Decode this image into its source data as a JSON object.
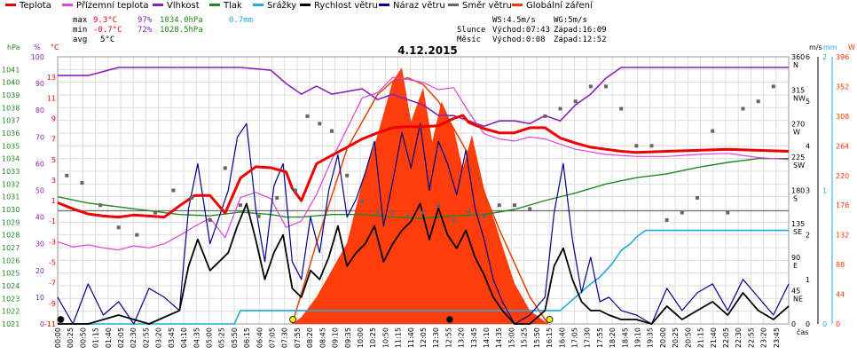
{
  "legend": [
    {
      "label": "Teplota",
      "color": "#ee0000"
    },
    {
      "label": "Přízemní teplota",
      "color": "#dd44dd"
    },
    {
      "label": "Vlhkost",
      "color": "#8822bb"
    },
    {
      "label": "Tlak",
      "color": "#228822"
    },
    {
      "label": "Srážky",
      "color": "#22aadd"
    },
    {
      "label": "Rychlost větru",
      "color": "#000000"
    },
    {
      "label": "Náraz větru",
      "color": "#000088"
    },
    {
      "label": "Směr větru",
      "color": "#666666"
    },
    {
      "label": "Globální záření",
      "color": "#ff3300"
    }
  ],
  "stats": {
    "max_label": "max",
    "max_temp": "9.3°C",
    "max_hum": "97%",
    "max_press": "1034.0hPa",
    "max_rain": "0.7mm",
    "min_label": "min",
    "min_temp": "-0.7°C",
    "min_hum": "72%",
    "min_press": "1028.5hPa",
    "avg_label": "avg",
    "avg_temp": "5°C"
  },
  "info": {
    "ws": "WS:4.5m/s",
    "wg": "WG:5m/s",
    "sun_label": "Slunce",
    "sunrise": "Východ:07:43",
    "sunset": "Západ:16:09",
    "moon_label": "Měsíc",
    "moonrise": "Východ:0:08",
    "moonset": "Západ:12:52"
  },
  "chart_data": {
    "type": "line",
    "title": "4.12.2015",
    "x_unit": "čas",
    "x_ticks": [
      "00:00",
      "00:25",
      "00:50",
      "01:15",
      "01:40",
      "02:05",
      "02:30",
      "02:55",
      "03:20",
      "03:45",
      "04:10",
      "04:35",
      "05:00",
      "05:25",
      "05:50",
      "06:15",
      "06:40",
      "07:05",
      "07:30",
      "07:55",
      "08:20",
      "08:45",
      "09:10",
      "09:35",
      "10:00",
      "10:25",
      "10:50",
      "11:15",
      "11:40",
      "12:05",
      "12:30",
      "12:55",
      "13:20",
      "13:45",
      "14:10",
      "14:35",
      "15:00",
      "15:25",
      "15:50",
      "16:15",
      "16:40",
      "17:05",
      "17:30",
      "17:55",
      "18:20",
      "18:45",
      "19:10",
      "19:35",
      "20:00",
      "20:25",
      "20:50",
      "21:15",
      "21:40",
      "22:05",
      "22:30",
      "22:55",
      "23:20",
      "23:45"
    ],
    "axes": {
      "pressure": {
        "unit": "hPa",
        "ticks": [
          "1041",
          "1040",
          "1039",
          "1038",
          "1037",
          "1036",
          "1035",
          "1034",
          "1033",
          "1032",
          "1031",
          "1030",
          "1029",
          "1028",
          "1027",
          "1026",
          "1025",
          "1024",
          "1023",
          "1022",
          "1021"
        ]
      },
      "humidity": {
        "unit": "%",
        "ticks": [
          "100",
          "90",
          "80",
          "70",
          "60",
          "50",
          "40",
          "30",
          "20",
          "10",
          "0"
        ]
      },
      "temperature": {
        "unit": "°C",
        "ticks": [
          "13",
          "11",
          "9",
          "7",
          "5",
          "3",
          "1",
          "-1",
          "-3",
          "-5",
          "-7",
          "-9",
          "-11"
        ]
      },
      "wind": {
        "unit": "m/s",
        "ticks": [
          "6",
          "5",
          "4",
          "3",
          "2",
          "1",
          "0"
        ]
      },
      "rain": {
        "unit": "mm",
        "ticks": [
          "2",
          "1",
          "0"
        ]
      },
      "direction": {
        "ticks": [
          {
            "deg": "360",
            "dir": "N"
          },
          {
            "deg": "315",
            "dir": "NW"
          },
          {
            "deg": "270",
            "dir": "W"
          },
          {
            "deg": "225",
            "dir": "SW"
          },
          {
            "deg": "180",
            "dir": "S"
          },
          {
            "deg": "135",
            "dir": "SE"
          },
          {
            "deg": "90",
            "dir": "E"
          },
          {
            "deg": "45",
            "dir": "NE"
          },
          {
            "deg": "0",
            "dir": ""
          }
        ]
      },
      "radiation": {
        "unit": "W",
        "ticks": [
          "396",
          "352",
          "308",
          "264",
          "220",
          "176",
          "132",
          "88",
          "44",
          "0"
        ]
      }
    },
    "series": [
      {
        "name": "Teplota",
        "unit": "°C",
        "color": "#ee0000",
        "x": [
          0,
          0.5,
          1,
          1.5,
          2,
          2.5,
          3,
          3.5,
          4,
          4.5,
          5,
          5.5,
          6,
          6.5,
          7,
          7.5,
          7.7,
          8,
          8.5,
          9,
          9.5,
          10,
          10.5,
          11,
          11.5,
          12,
          12.5,
          13,
          13.3,
          13.5,
          14,
          14.5,
          15,
          15.5,
          16,
          16.5,
          17,
          17.5,
          18,
          18.5,
          19,
          20,
          21,
          22,
          23,
          24
        ],
        "y": [
          0.8,
          0.2,
          -0.3,
          -0.5,
          -0.6,
          -0.4,
          -0.5,
          -0.6,
          0.5,
          1.5,
          1.5,
          -0.2,
          3.2,
          4.3,
          4.2,
          3.8,
          2.2,
          1.0,
          4.6,
          5.4,
          6.2,
          7.0,
          7.6,
          8.1,
          8.2,
          8.2,
          8.3,
          9.0,
          9.3,
          8.6,
          8.0,
          7.6,
          7.6,
          8.1,
          8.1,
          7.1,
          6.6,
          6.2,
          6.0,
          5.8,
          5.7,
          5.8,
          5.9,
          6.0,
          5.9,
          5.8
        ]
      },
      {
        "name": "Přízemní teplota",
        "unit": "°C",
        "color": "#dd44dd",
        "x": [
          0,
          0.5,
          1,
          1.5,
          2,
          2.5,
          3,
          3.5,
          4,
          4.5,
          5,
          5.5,
          6,
          6.5,
          7,
          7.5,
          8,
          8.5,
          9,
          9.5,
          10,
          10.5,
          11,
          11.5,
          12,
          12.5,
          13,
          13.5,
          14,
          14.5,
          15,
          15.5,
          16,
          16.5,
          17,
          18,
          19,
          20,
          21,
          22,
          23,
          24
        ],
        "y": [
          -3.0,
          -3.5,
          -3.3,
          -3.6,
          -3.8,
          -3.4,
          -3.6,
          -3.2,
          -2.4,
          -1.5,
          -0.7,
          -2.6,
          1.3,
          1.8,
          1.2,
          -1.6,
          -1.0,
          1.6,
          5.0,
          8.0,
          11.0,
          11.5,
          13.0,
          12.8,
          12.5,
          11.8,
          12.0,
          9.6,
          7.5,
          7.0,
          6.8,
          7.2,
          7.0,
          6.5,
          6.0,
          5.5,
          5.3,
          5.3,
          5.5,
          5.6,
          5.2,
          5.0
        ]
      },
      {
        "name": "Vlhkost",
        "unit": "%",
        "color": "#8822bb",
        "x": [
          0,
          1,
          2,
          3,
          4,
          5,
          6,
          7,
          7.5,
          8,
          8.5,
          9,
          9.5,
          10,
          10.5,
          11,
          11.5,
          12,
          12.5,
          13,
          13.5,
          14,
          14.5,
          15,
          15.5,
          16,
          16.5,
          17,
          17.5,
          18,
          18.5,
          19,
          19.5,
          20,
          21,
          22,
          23,
          24
        ],
        "y": [
          93,
          93,
          96,
          96,
          96,
          96,
          96,
          95,
          90,
          86,
          89,
          86,
          87,
          88,
          84,
          86,
          84,
          82,
          78,
          78,
          76,
          74,
          76,
          76,
          75,
          78,
          76,
          82,
          86,
          92,
          96,
          96,
          96,
          96,
          96,
          96,
          96,
          96
        ]
      },
      {
        "name": "Tlak",
        "unit": "hPa",
        "color": "#228822",
        "x": [
          0,
          1,
          2,
          3,
          4,
          5,
          6,
          7,
          7.5,
          8,
          9,
          10,
          11,
          12,
          13,
          14,
          15,
          16,
          17,
          18,
          19,
          20,
          21,
          22,
          23,
          24
        ],
        "y": [
          1031.0,
          1030.5,
          1030.2,
          1029.9,
          1029.6,
          1029.5,
          1029.8,
          1029.6,
          1029.4,
          1029.4,
          1029.6,
          1029.6,
          1029.4,
          1029.3,
          1029.5,
          1029.6,
          1030.0,
          1030.7,
          1031.3,
          1032.0,
          1032.5,
          1032.8,
          1033.3,
          1033.7,
          1034.0,
          1034.0
        ]
      },
      {
        "name": "Srážky",
        "unit": "mm",
        "color": "#22aadd",
        "x": [
          0,
          5.8,
          6.0,
          16.5,
          17.5,
          17.8,
          18.2,
          18.5,
          18.8,
          19.0,
          19.3,
          19.6,
          24
        ],
        "y": [
          0,
          0,
          0.1,
          0.1,
          0.3,
          0.35,
          0.45,
          0.55,
          0.6,
          0.65,
          0.7,
          0.7,
          0.7
        ]
      },
      {
        "name": "Rychlost větru",
        "unit": "m/s",
        "color": "#000000",
        "x": [
          0,
          0.5,
          1,
          2,
          3,
          4,
          4.3,
          4.6,
          5,
          5.3,
          5.6,
          5.9,
          6.2,
          6.5,
          6.8,
          7.1,
          7.4,
          7.7,
          8,
          8.3,
          8.6,
          8.9,
          9.2,
          9.5,
          9.8,
          10.1,
          10.4,
          10.7,
          11,
          11.3,
          11.6,
          11.9,
          12.2,
          12.5,
          12.8,
          13.1,
          13.4,
          13.7,
          14,
          14.3,
          14.6,
          15,
          15.5,
          16,
          16.3,
          16.6,
          16.9,
          17.2,
          17.5,
          17.8,
          18.1,
          18.5,
          19,
          19.5,
          20,
          20.5,
          21,
          21.5,
          22,
          22.5,
          23,
          23.5,
          24
        ],
        "y": [
          0,
          0,
          0,
          0.2,
          0,
          0.3,
          1.3,
          1.9,
          1.2,
          1.4,
          1.6,
          2.2,
          2.7,
          1.9,
          1.0,
          1.6,
          2.0,
          0.8,
          0.6,
          1.2,
          1.0,
          1.5,
          2.2,
          1.3,
          1.6,
          1.8,
          2.2,
          1.4,
          1.8,
          2.1,
          2.3,
          2.7,
          1.9,
          2.6,
          2.0,
          1.7,
          2.1,
          1.5,
          1.1,
          0.6,
          0.3,
          0,
          0,
          0.3,
          1.3,
          1.7,
          1.0,
          0.5,
          0.3,
          0.3,
          0.2,
          0.1,
          0.1,
          0,
          0.4,
          0.1,
          0.3,
          0.5,
          0.2,
          0.7,
          0.3,
          0.1,
          0.4
        ]
      },
      {
        "name": "Náraz větru",
        "unit": "m/s",
        "color": "#000088",
        "x": [
          0,
          0.5,
          1,
          1.5,
          2,
          2.5,
          3,
          3.5,
          4,
          4.3,
          4.6,
          5,
          5.3,
          5.6,
          5.9,
          6.2,
          6.5,
          6.8,
          7.1,
          7.4,
          7.7,
          8,
          8.3,
          8.6,
          8.9,
          9.2,
          9.5,
          9.8,
          10.1,
          10.4,
          10.7,
          11,
          11.3,
          11.6,
          11.9,
          12.2,
          12.5,
          12.8,
          13.1,
          13.4,
          13.7,
          14,
          14.3,
          14.6,
          15,
          15.5,
          16,
          16.3,
          16.6,
          16.9,
          17.2,
          17.5,
          17.8,
          18.1,
          18.5,
          19,
          19.5,
          20,
          20.5,
          21,
          21.5,
          22,
          22.5,
          23,
          23.5,
          24
        ],
        "y": [
          0.6,
          0,
          0.9,
          0.2,
          0.5,
          0,
          0.8,
          0.6,
          0.3,
          2.6,
          3.6,
          1.8,
          2.4,
          3.0,
          4.2,
          4.5,
          2.6,
          1.4,
          3.1,
          3.6,
          1.4,
          1.0,
          2.4,
          1.6,
          3.0,
          3.8,
          2.4,
          2.8,
          3.4,
          4.1,
          2.2,
          3.2,
          4.3,
          3.5,
          4.5,
          3.0,
          4.1,
          3.6,
          2.9,
          3.9,
          2.6,
          1.9,
          1.0,
          0.5,
          0,
          0.2,
          0.6,
          2.5,
          3.6,
          1.9,
          0.7,
          1.5,
          0.5,
          0.6,
          0.3,
          0.2,
          0,
          0.8,
          0.3,
          0.7,
          0.9,
          0.3,
          1.0,
          0.6,
          0.2,
          0.9
        ]
      },
      {
        "name": "Směr větru",
        "unit": "°",
        "color": "#666666",
        "x": [
          0.3,
          0.8,
          1.4,
          2.0,
          2.6,
          3.2,
          3.8,
          4.4,
          5.0,
          5.5,
          6.0,
          6.6,
          7.2,
          7.8,
          8.2,
          8.6,
          9.0,
          9.5,
          10.0,
          10.5,
          11.0,
          11.5,
          12.0,
          12.5,
          13.0,
          13.5,
          14.0,
          14.5,
          15.0,
          15.5,
          16.0,
          16.5,
          17.0,
          17.5,
          18.0,
          18.5,
          19.0,
          19.5,
          20.0,
          20.5,
          21.0,
          21.5,
          22.0,
          22.5,
          23.0,
          23.5
        ],
        "y": [
          200,
          190,
          160,
          130,
          120,
          150,
          180,
          170,
          140,
          210,
          160,
          145,
          170,
          180,
          280,
          270,
          260,
          200,
          165,
          150,
          150,
          145,
          150,
          160,
          140,
          150,
          145,
          160,
          160,
          155,
          280,
          290,
          300,
          320,
          320,
          290,
          240,
          240,
          140,
          150,
          170,
          260,
          150,
          290,
          300,
          320
        ]
      },
      {
        "name": "Globální záření",
        "unit": "W",
        "color": "#ff3300",
        "x": [
          7.7,
          8.0,
          8.5,
          9.0,
          9.5,
          10.0,
          10.5,
          11.0,
          11.3,
          11.6,
          12.0,
          12.3,
          12.6,
          13.0,
          13.3,
          13.6,
          14.0,
          14.5,
          15.0,
          15.5,
          16.1
        ],
        "y": [
          0,
          10,
          40,
          80,
          120,
          210,
          280,
          360,
          380,
          300,
          350,
          270,
          330,
          290,
          230,
          280,
          200,
          130,
          60,
          20,
          0
        ]
      }
    ],
    "clear_sky_radiation": {
      "x": [
        7.7,
        8.5,
        9.5,
        10.5,
        11.0,
        11.5,
        12.0,
        12.5,
        13.5,
        14.5,
        15.5,
        16.1
      ],
      "y": [
        0,
        120,
        260,
        340,
        360,
        365,
        355,
        330,
        250,
        140,
        40,
        0
      ]
    },
    "markers": [
      {
        "x": 0.1,
        "kind": "moonrise",
        "color": "#000000"
      },
      {
        "x": 7.72,
        "kind": "sunrise",
        "color": "#ffee00"
      },
      {
        "x": 12.87,
        "kind": "moonset",
        "color": "#000000"
      },
      {
        "x": 16.15,
        "kind": "sunset",
        "color": "#ffee00"
      }
    ],
    "ranges": {
      "temperature": [
        -11,
        15
      ],
      "humidity": [
        0,
        100
      ],
      "pressure": [
        1021,
        1042
      ],
      "wind": [
        0,
        6
      ],
      "rain": [
        0,
        2
      ],
      "direction": [
        0,
        360
      ],
      "radiation": [
        0,
        396
      ]
    },
    "grid": true,
    "legend_position": "top"
  }
}
